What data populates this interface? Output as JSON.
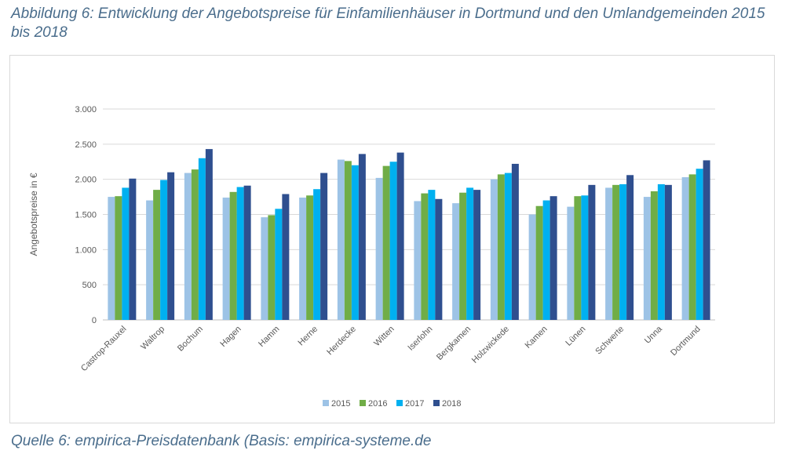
{
  "caption": "Abbildung 6: Entwicklung der Angebotspreise für Einfamilienhäuser in Dortmund und den Umlandgemeinden 2015 bis 2018",
  "source": "Quelle 6: empirica-Preisdatenbank (Basis: empirica-systeme.de",
  "chart_data": {
    "type": "bar",
    "title": "",
    "xlabel": "",
    "ylabel": "Angebotspreise in €",
    "ylim": [
      0,
      3000
    ],
    "yticks": [
      0,
      500,
      1000,
      1500,
      2000,
      2500,
      3000
    ],
    "ytick_labels": [
      "0",
      "500",
      "1.000",
      "1.500",
      "2.000",
      "2.500",
      "3.000"
    ],
    "grid": true,
    "legend_position": "bottom",
    "categories": [
      "Castrop-Rauxel",
      "Waltrop",
      "Bochum",
      "Hagen",
      "Hamm",
      "Herne",
      "Herdecke",
      "Witten",
      "Iserlohn",
      "Bergkamen",
      "Holzwickede",
      "Kamen",
      "Lünen",
      "Schwerte",
      "Unna",
      "Dortmund"
    ],
    "series": [
      {
        "name": "2015",
        "color": "#9dc3e6",
        "values": [
          1750,
          1700,
          2090,
          1740,
          1460,
          1740,
          2280,
          2020,
          1690,
          1660,
          2000,
          1500,
          1610,
          1880,
          1750,
          2030
        ]
      },
      {
        "name": "2016",
        "color": "#70ad47",
        "values": [
          1760,
          1850,
          2140,
          1820,
          1490,
          1770,
          2260,
          2190,
          1800,
          1810,
          2070,
          1620,
          1760,
          1920,
          1830,
          2070
        ]
      },
      {
        "name": "2017",
        "color": "#00b0f0",
        "values": [
          1880,
          1990,
          2300,
          1890,
          1580,
          1860,
          2200,
          2250,
          1850,
          1880,
          2090,
          1700,
          1770,
          1930,
          1930,
          2150
        ]
      },
      {
        "name": "2018",
        "color": "#2f4f8f",
        "values": [
          2010,
          2100,
          2430,
          1910,
          1790,
          2090,
          2360,
          2380,
          1720,
          1850,
          2220,
          1760,
          1920,
          2060,
          1920,
          2270
        ]
      }
    ]
  }
}
